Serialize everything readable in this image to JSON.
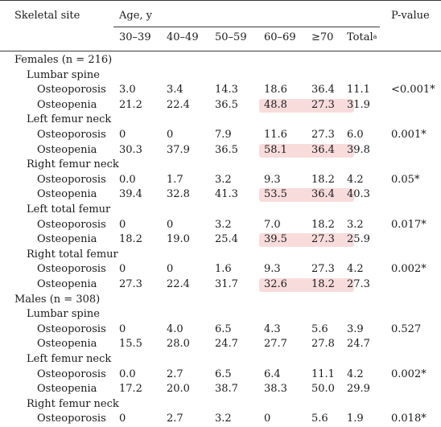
{
  "header": {
    "site_label": "Skeletal site",
    "age_label": "Age, y",
    "pvalue_label": "P-value",
    "age_groups": [
      "30–39",
      "40–49",
      "50–59",
      "60–69",
      "≥70"
    ],
    "total_label": "Total",
    "total_footnote": "a"
  },
  "highlight_color": "#f8dcdc",
  "groups": [
    {
      "title": "Females (n = 216)",
      "sites": [
        {
          "name": "Lumbar spine",
          "rows": [
            {
              "label": "Osteoporosis",
              "values": [
                "3.0",
                "3.4",
                "14.3",
                "18.6",
                "36.4",
                "11.1"
              ],
              "p": "<0.001*",
              "highlight": false
            },
            {
              "label": "Osteopenia",
              "values": [
                "21.2",
                "22.4",
                "36.5",
                "48.8",
                "27.3",
                "31.9"
              ],
              "p": "",
              "highlight": true
            }
          ]
        },
        {
          "name": "Left femur neck",
          "rows": [
            {
              "label": "Osteoporosis",
              "values": [
                "0",
                "0",
                "7.9",
                "11.6",
                "27.3",
                "6.0"
              ],
              "p": "0.001*",
              "highlight": false
            },
            {
              "label": "Osteopenia",
              "values": [
                "30.3",
                "37.9",
                "36.5",
                "58.1",
                "36.4",
                "39.8"
              ],
              "p": "",
              "highlight": true
            }
          ]
        },
        {
          "name": "Right femur neck",
          "rows": [
            {
              "label": "Osteoporosis",
              "values": [
                "0.0",
                "1.7",
                "3.2",
                "9.3",
                "18.2",
                "4.2"
              ],
              "p": "0.05*",
              "highlight": false
            },
            {
              "label": "Osteopenia",
              "values": [
                "39.4",
                "32.8",
                "41.3",
                "53.5",
                "36.4",
                "40.3"
              ],
              "p": "",
              "highlight": true
            }
          ]
        },
        {
          "name": "Left total femur",
          "rows": [
            {
              "label": "Osteoporosis",
              "values": [
                "0",
                "0",
                "3.2",
                "7.0",
                "18.2",
                "3.2"
              ],
              "p": "0.017*",
              "highlight": false
            },
            {
              "label": "Osteopenia",
              "values": [
                "18.2",
                "19.0",
                "25.4",
                "39.5",
                "27.3",
                "25.9"
              ],
              "p": "",
              "highlight": true
            }
          ]
        },
        {
          "name": "Right total femur",
          "rows": [
            {
              "label": "Osteoporosis",
              "values": [
                "0",
                "0",
                "1.6",
                "9.3",
                "27.3",
                "4.2"
              ],
              "p": "0.002*",
              "highlight": false
            },
            {
              "label": "Osteopenia",
              "values": [
                "27.3",
                "22.4",
                "31.7",
                "32.6",
                "18.2",
                "27.3"
              ],
              "p": "",
              "highlight": true
            }
          ]
        }
      ]
    },
    {
      "title": "Males (n = 308)",
      "sites": [
        {
          "name": "Lumbar spine",
          "rows": [
            {
              "label": "Osteoporosis",
              "values": [
                "0",
                "4.0",
                "6.5",
                "4.3",
                "5.6",
                "3.9"
              ],
              "p": "0.527",
              "highlight": false
            },
            {
              "label": "Osteopenia",
              "values": [
                "15.5",
                "28.0",
                "24.7",
                "27.7",
                "27.8",
                "24.7"
              ],
              "p": "",
              "highlight": false
            }
          ]
        },
        {
          "name": "Left femur neck",
          "rows": [
            {
              "label": "Osteoporosis",
              "values": [
                "0.0",
                "2.7",
                "6.5",
                "6.4",
                "11.1",
                "4.2"
              ],
              "p": "0.002*",
              "highlight": false
            },
            {
              "label": "Osteopenia",
              "values": [
                "17.2",
                "20.0",
                "38.7",
                "38.3",
                "50.0",
                "29.9"
              ],
              "p": "",
              "highlight": false
            }
          ]
        },
        {
          "name": "Right femur neck",
          "rows": [
            {
              "label": "Osteoporosis",
              "values": [
                "0",
                "2.7",
                "3.2",
                "0",
                "5.6",
                "1.9"
              ],
              "p": "0.018*",
              "highlight": false
            }
          ]
        }
      ]
    }
  ]
}
